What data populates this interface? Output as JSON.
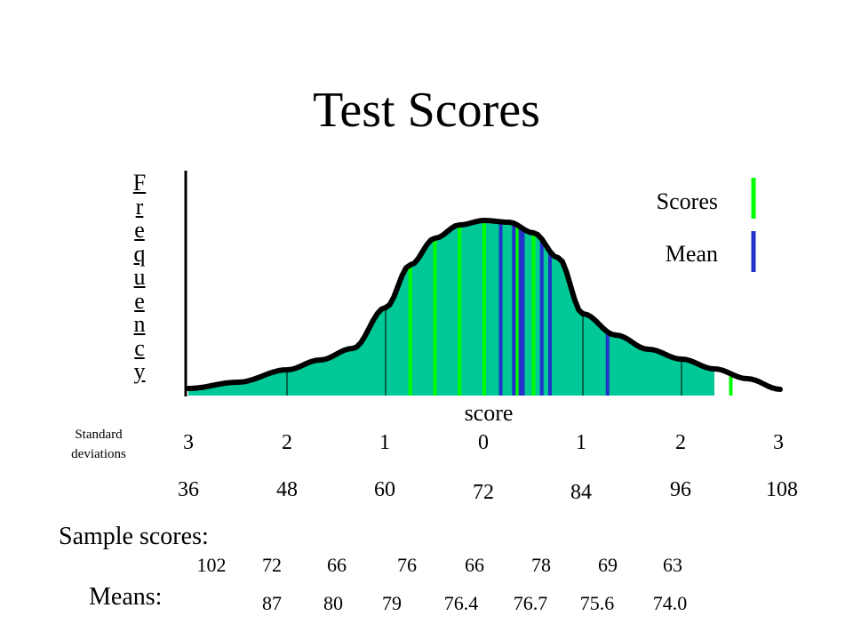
{
  "title": "Test Scores",
  "colors": {
    "fill": "#00c896",
    "scores": "#00ff00",
    "mean": "#2233cc",
    "curve": "#000000"
  },
  "chart_data": {
    "type": "area",
    "title": "Test Scores",
    "xlabel": "score",
    "ylabel": "Frequency",
    "sd_label": "Standard deviations",
    "sd_ticks": [
      "3",
      "2",
      "1",
      "0",
      "1",
      "2",
      "3"
    ],
    "score_ticks": [
      "36",
      "48",
      "60",
      "72",
      "84",
      "96",
      "108"
    ],
    "xlim": [
      36,
      108
    ],
    "distribution": {
      "mean": 72,
      "sd": 12
    },
    "legend": [
      {
        "label": "Scores",
        "color": "#00ff00"
      },
      {
        "label": "Mean",
        "color": "#2233cc"
      }
    ],
    "legend_position": "top-right",
    "sample_scores": [
      102,
      72,
      66,
      76,
      66,
      78,
      69,
      63
    ],
    "means": [
      "87",
      "80",
      "79",
      "76.4",
      "76.7",
      "75.6",
      "74.0"
    ]
  },
  "sample_scores_label": "Sample scores:",
  "means_label": "Means:"
}
